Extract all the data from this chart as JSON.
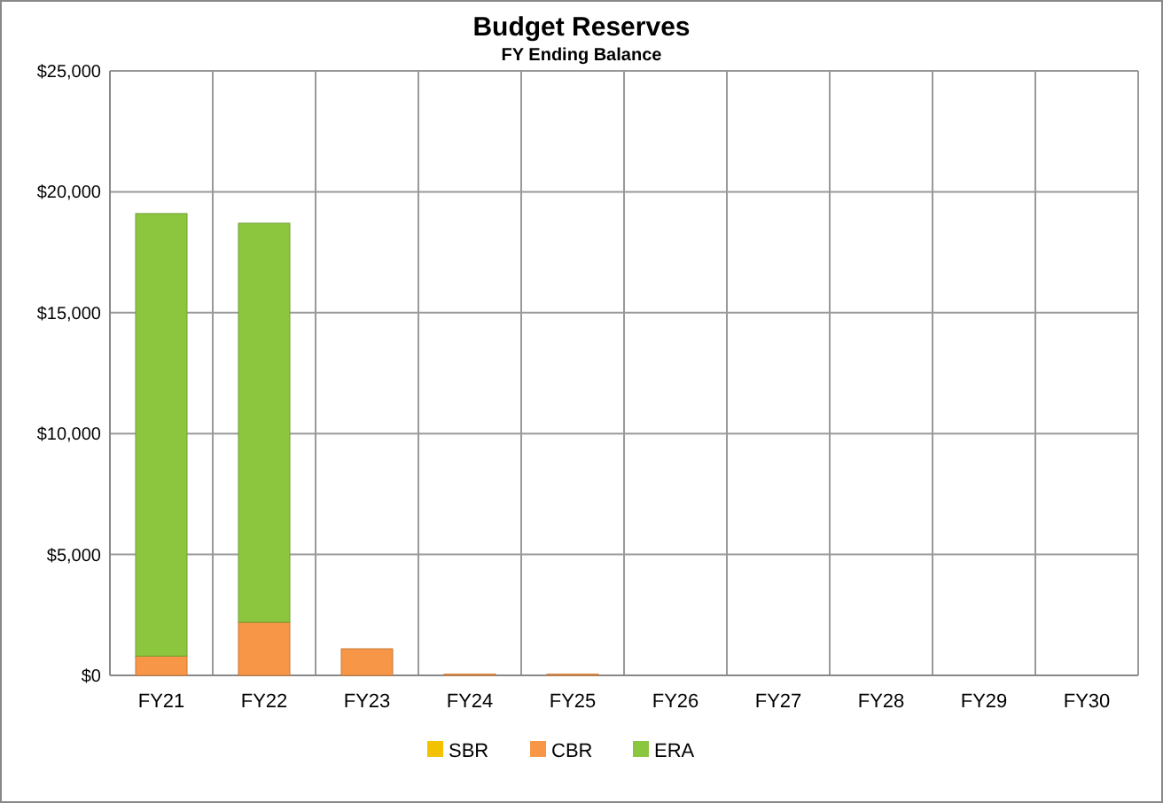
{
  "chart_data": {
    "type": "bar",
    "title": "Budget Reserves",
    "subtitle": "FY Ending Balance",
    "stacked": true,
    "categories": [
      "FY21",
      "FY22",
      "FY23",
      "FY24",
      "FY25",
      "FY26",
      "FY27",
      "FY28",
      "FY29",
      "FY30"
    ],
    "series": [
      {
        "name": "SBR",
        "color": "#f2c200",
        "values": [
          0,
          0,
          0,
          0,
          0,
          0,
          0,
          0,
          0,
          0
        ]
      },
      {
        "name": "CBR",
        "color": "#f79646",
        "values": [
          800,
          2200,
          1100,
          50,
          50,
          0,
          0,
          0,
          0,
          0
        ]
      },
      {
        "name": "ERA",
        "color": "#8cc63f",
        "values": [
          18300,
          16500,
          0,
          0,
          0,
          0,
          0,
          0,
          0,
          0
        ]
      }
    ],
    "ylim": [
      0,
      25000
    ],
    "yticks": [
      {
        "value": 0,
        "label": "$0"
      },
      {
        "value": 5000,
        "label": "$5,000"
      },
      {
        "value": 10000,
        "label": "$10,000"
      },
      {
        "value": 15000,
        "label": "$15,000"
      },
      {
        "value": 20000,
        "label": "$20,000"
      },
      {
        "value": 25000,
        "label": "$25,000"
      }
    ],
    "grid": true,
    "legend": "bottom"
  }
}
